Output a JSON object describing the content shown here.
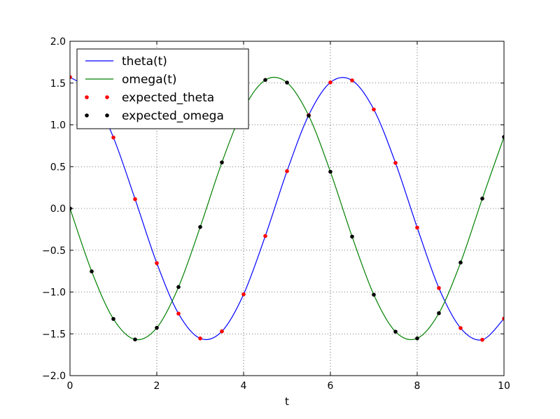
{
  "chart_data": {
    "type": "line",
    "title": "",
    "xlabel": "t",
    "ylabel": "",
    "xlim": [
      0,
      10
    ],
    "ylim": [
      -2.0,
      2.0
    ],
    "xticks": [
      0,
      2,
      4,
      6,
      8,
      10
    ],
    "xtick_labels": [
      "0",
      "2",
      "4",
      "6",
      "8",
      "10"
    ],
    "yticks": [
      -2.0,
      -1.5,
      -1.0,
      -0.5,
      0.0,
      0.5,
      1.0,
      1.5,
      2.0
    ],
    "ytick_labels": [
      "−2.0",
      "−1.5",
      "−1.0",
      "−0.5",
      "0.0",
      "0.5",
      "1.0",
      "1.5",
      "2.0"
    ],
    "grid": true,
    "legend_position": "top-left",
    "series": [
      {
        "name": "theta(t)",
        "kind": "line",
        "color": "#0000ff",
        "x": [
          0,
          0.5,
          1,
          1.5,
          2,
          2.5,
          3,
          3.5,
          4,
          4.5,
          5,
          5.5,
          6,
          6.5,
          7,
          7.5,
          8,
          8.5,
          9,
          9.5,
          10
        ],
        "y": [
          1.571,
          1.379,
          0.849,
          0.111,
          -0.654,
          -1.258,
          -1.555,
          -1.47,
          -1.027,
          -0.33,
          0.446,
          1.116,
          1.508,
          1.532,
          1.184,
          0.545,
          -0.229,
          -0.952,
          -1.431,
          -1.571,
          -1.318
        ]
      },
      {
        "name": "omega(t)",
        "kind": "line",
        "color": "#008000",
        "x": [
          0,
          0.5,
          1,
          1.5,
          2,
          2.5,
          3,
          3.5,
          4,
          4.5,
          5,
          5.5,
          6,
          6.5,
          7,
          7.5,
          8,
          8.5,
          9,
          9.5,
          10
        ],
        "y": [
          0.0,
          -0.753,
          -1.322,
          -1.567,
          -1.428,
          -0.94,
          -0.222,
          0.551,
          1.189,
          1.537,
          1.506,
          1.11,
          0.439,
          -0.337,
          -1.032,
          -1.474,
          -1.554,
          -1.253,
          -0.647,
          0.118,
          0.855
        ]
      },
      {
        "name": "expected_theta",
        "kind": "points",
        "color": "#ff0000",
        "x": [
          0,
          0.5,
          1,
          1.5,
          2,
          2.5,
          3,
          3.5,
          4,
          4.5,
          5,
          5.5,
          6,
          6.5,
          7,
          7.5,
          8,
          8.5,
          9,
          9.5,
          10
        ],
        "y": [
          1.571,
          1.379,
          0.849,
          0.111,
          -0.654,
          -1.258,
          -1.555,
          -1.47,
          -1.027,
          -0.33,
          0.446,
          1.116,
          1.508,
          1.532,
          1.184,
          0.545,
          -0.229,
          -0.952,
          -1.431,
          -1.571,
          -1.318
        ]
      },
      {
        "name": "expected_omega",
        "kind": "points",
        "color": "#000000",
        "x": [
          0,
          0.5,
          1,
          1.5,
          2,
          2.5,
          3,
          3.5,
          4,
          4.5,
          5,
          5.5,
          6,
          6.5,
          7,
          7.5,
          8,
          8.5,
          9,
          9.5,
          10
        ],
        "y": [
          0.0,
          -0.753,
          -1.322,
          -1.567,
          -1.428,
          -0.94,
          -0.222,
          0.551,
          1.189,
          1.537,
          1.506,
          1.11,
          0.439,
          -0.337,
          -1.032,
          -1.474,
          -1.554,
          -1.253,
          -0.647,
          0.118,
          0.855
        ]
      }
    ]
  }
}
